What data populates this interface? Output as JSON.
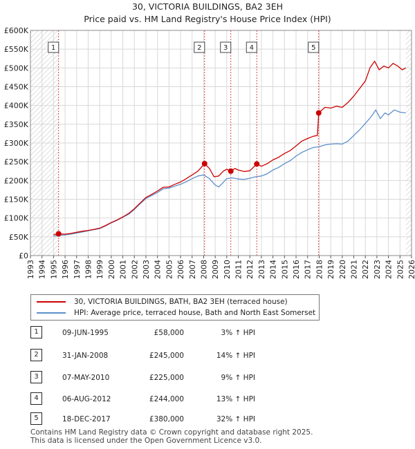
{
  "header": {
    "title_line1": "30, VICTORIA BUILDINGS, BA2 3EH",
    "title_line2": "Price paid vs. HM Land Registry's House Price Index (HPI)"
  },
  "colors": {
    "property": "#cc0000",
    "hpi": "#5b8fcc",
    "marker_line": "#dd4444",
    "grid": "#d8d8d8"
  },
  "chart_data": {
    "type": "line",
    "xlim": [
      1993,
      2026
    ],
    "ylim": [
      0,
      600000
    ],
    "x_ticks": [
      "1993",
      "1994",
      "1995",
      "1996",
      "1997",
      "1998",
      "1999",
      "2000",
      "2001",
      "2002",
      "2003",
      "2004",
      "2005",
      "2006",
      "2007",
      "2008",
      "2009",
      "2010",
      "2011",
      "2012",
      "2013",
      "2014",
      "2015",
      "2016",
      "2017",
      "2018",
      "2019",
      "2020",
      "2021",
      "2022",
      "2023",
      "2024",
      "2025",
      "2026"
    ],
    "y_ticks": [
      {
        "value": 0,
        "label": "£0"
      },
      {
        "value": 50000,
        "label": "£50K"
      },
      {
        "value": 100000,
        "label": "£100K"
      },
      {
        "value": 150000,
        "label": "£150K"
      },
      {
        "value": 200000,
        "label": "£200K"
      },
      {
        "value": 250000,
        "label": "£250K"
      },
      {
        "value": 300000,
        "label": "£300K"
      },
      {
        "value": 350000,
        "label": "£350K"
      },
      {
        "value": 400000,
        "label": "£400K"
      },
      {
        "value": 450000,
        "label": "£450K"
      },
      {
        "value": 500000,
        "label": "£500K"
      },
      {
        "value": 550000,
        "label": "£550K"
      },
      {
        "value": 600000,
        "label": "£600K"
      }
    ],
    "hatched_before": 1995.44,
    "hatched_after": 2025.5,
    "series": [
      {
        "name": "30, VICTORIA BUILDINGS, BATH, BA2 3EH (terraced house)",
        "color": "#cc0000",
        "points": [
          [
            1995.0,
            56000
          ],
          [
            1995.44,
            58000
          ],
          [
            1996.0,
            57000
          ],
          [
            1996.5,
            59000
          ],
          [
            1997.0,
            62000
          ],
          [
            1997.5,
            65000
          ],
          [
            1998.0,
            67000
          ],
          [
            1998.5,
            70000
          ],
          [
            1999.0,
            73000
          ],
          [
            1999.5,
            80000
          ],
          [
            2000.0,
            88000
          ],
          [
            2000.5,
            95000
          ],
          [
            2001.0,
            103000
          ],
          [
            2001.5,
            112000
          ],
          [
            2002.0,
            125000
          ],
          [
            2002.5,
            140000
          ],
          [
            2003.0,
            155000
          ],
          [
            2003.5,
            163000
          ],
          [
            2004.0,
            172000
          ],
          [
            2004.5,
            182000
          ],
          [
            2005.0,
            183000
          ],
          [
            2005.5,
            190000
          ],
          [
            2006.0,
            196000
          ],
          [
            2006.5,
            205000
          ],
          [
            2007.0,
            215000
          ],
          [
            2007.5,
            225000
          ],
          [
            2008.08,
            245000
          ],
          [
            2008.5,
            232000
          ],
          [
            2008.9,
            210000
          ],
          [
            2009.3,
            212000
          ],
          [
            2009.7,
            225000
          ],
          [
            2010.0,
            230000
          ],
          [
            2010.35,
            225000
          ],
          [
            2010.7,
            232000
          ],
          [
            2011.0,
            228000
          ],
          [
            2011.5,
            224000
          ],
          [
            2012.0,
            226000
          ],
          [
            2012.6,
            244000
          ],
          [
            2013.0,
            238000
          ],
          [
            2013.5,
            245000
          ],
          [
            2014.0,
            255000
          ],
          [
            2014.5,
            262000
          ],
          [
            2015.0,
            272000
          ],
          [
            2015.5,
            280000
          ],
          [
            2016.0,
            292000
          ],
          [
            2016.5,
            305000
          ],
          [
            2017.0,
            312000
          ],
          [
            2017.5,
            318000
          ],
          [
            2017.85,
            320000
          ],
          [
            2017.96,
            380000
          ],
          [
            2018.5,
            395000
          ],
          [
            2019.0,
            393000
          ],
          [
            2019.5,
            398000
          ],
          [
            2020.0,
            395000
          ],
          [
            2020.5,
            408000
          ],
          [
            2021.0,
            425000
          ],
          [
            2021.5,
            445000
          ],
          [
            2022.0,
            465000
          ],
          [
            2022.4,
            500000
          ],
          [
            2022.8,
            518000
          ],
          [
            2023.2,
            495000
          ],
          [
            2023.6,
            505000
          ],
          [
            2024.0,
            500000
          ],
          [
            2024.4,
            512000
          ],
          [
            2024.8,
            505000
          ],
          [
            2025.2,
            495000
          ],
          [
            2025.5,
            500000
          ]
        ]
      },
      {
        "name": "HPI: Average price, terraced house, Bath and North East Somerset",
        "color": "#5b8fcc",
        "points": [
          [
            1995.0,
            52000
          ],
          [
            1995.5,
            54000
          ],
          [
            1996.0,
            55000
          ],
          [
            1996.5,
            57000
          ],
          [
            1997.0,
            60000
          ],
          [
            1997.5,
            63000
          ],
          [
            1998.0,
            66000
          ],
          [
            1998.5,
            69000
          ],
          [
            1999.0,
            72000
          ],
          [
            1999.5,
            79000
          ],
          [
            2000.0,
            87000
          ],
          [
            2000.5,
            94000
          ],
          [
            2001.0,
            102000
          ],
          [
            2001.5,
            110000
          ],
          [
            2002.0,
            123000
          ],
          [
            2002.5,
            138000
          ],
          [
            2003.0,
            152000
          ],
          [
            2003.5,
            160000
          ],
          [
            2004.0,
            168000
          ],
          [
            2004.5,
            178000
          ],
          [
            2005.0,
            180000
          ],
          [
            2005.5,
            185000
          ],
          [
            2006.0,
            190000
          ],
          [
            2006.5,
            197000
          ],
          [
            2007.0,
            205000
          ],
          [
            2007.5,
            212000
          ],
          [
            2008.0,
            215000
          ],
          [
            2008.5,
            205000
          ],
          [
            2009.0,
            188000
          ],
          [
            2009.3,
            183000
          ],
          [
            2009.7,
            195000
          ],
          [
            2010.0,
            205000
          ],
          [
            2010.5,
            207000
          ],
          [
            2011.0,
            204000
          ],
          [
            2011.5,
            203000
          ],
          [
            2012.0,
            206000
          ],
          [
            2012.5,
            210000
          ],
          [
            2013.0,
            212000
          ],
          [
            2013.5,
            218000
          ],
          [
            2014.0,
            228000
          ],
          [
            2014.5,
            235000
          ],
          [
            2015.0,
            245000
          ],
          [
            2015.5,
            253000
          ],
          [
            2016.0,
            265000
          ],
          [
            2016.5,
            275000
          ],
          [
            2017.0,
            282000
          ],
          [
            2017.5,
            288000
          ],
          [
            2018.0,
            290000
          ],
          [
            2018.5,
            295000
          ],
          [
            2019.0,
            297000
          ],
          [
            2019.5,
            298000
          ],
          [
            2020.0,
            297000
          ],
          [
            2020.5,
            305000
          ],
          [
            2021.0,
            320000
          ],
          [
            2021.5,
            335000
          ],
          [
            2022.0,
            352000
          ],
          [
            2022.5,
            370000
          ],
          [
            2022.9,
            388000
          ],
          [
            2023.3,
            365000
          ],
          [
            2023.7,
            380000
          ],
          [
            2024.0,
            375000
          ],
          [
            2024.5,
            388000
          ],
          [
            2025.0,
            382000
          ],
          [
            2025.5,
            380000
          ]
        ]
      }
    ],
    "markers": [
      {
        "id": "1",
        "x": 1995.44,
        "y": 58000
      },
      {
        "id": "2",
        "x": 2008.08,
        "y": 245000
      },
      {
        "id": "3",
        "x": 2010.35,
        "y": 225000
      },
      {
        "id": "4",
        "x": 2012.6,
        "y": 244000
      },
      {
        "id": "5",
        "x": 2017.96,
        "y": 380000
      }
    ]
  },
  "legend": {
    "property_label": "30, VICTORIA BUILDINGS, BATH, BA2 3EH (terraced house)",
    "hpi_label": "HPI: Average price, terraced house, Bath and North East Somerset"
  },
  "transactions": [
    {
      "num": "1",
      "date": "09-JUN-1995",
      "price": "£58,000",
      "hpi": "3% ↑ HPI"
    },
    {
      "num": "2",
      "date": "31-JAN-2008",
      "price": "£245,000",
      "hpi": "14% ↑ HPI"
    },
    {
      "num": "3",
      "date": "07-MAY-2010",
      "price": "£225,000",
      "hpi": "9% ↑ HPI"
    },
    {
      "num": "4",
      "date": "06-AUG-2012",
      "price": "£244,000",
      "hpi": "13% ↑ HPI"
    },
    {
      "num": "5",
      "date": "18-DEC-2017",
      "price": "£380,000",
      "hpi": "32% ↑ HPI"
    }
  ],
  "footer": {
    "line1": "Contains HM Land Registry data © Crown copyright and database right 2025.",
    "line2": "This data is licensed under the Open Government Licence v3.0."
  }
}
